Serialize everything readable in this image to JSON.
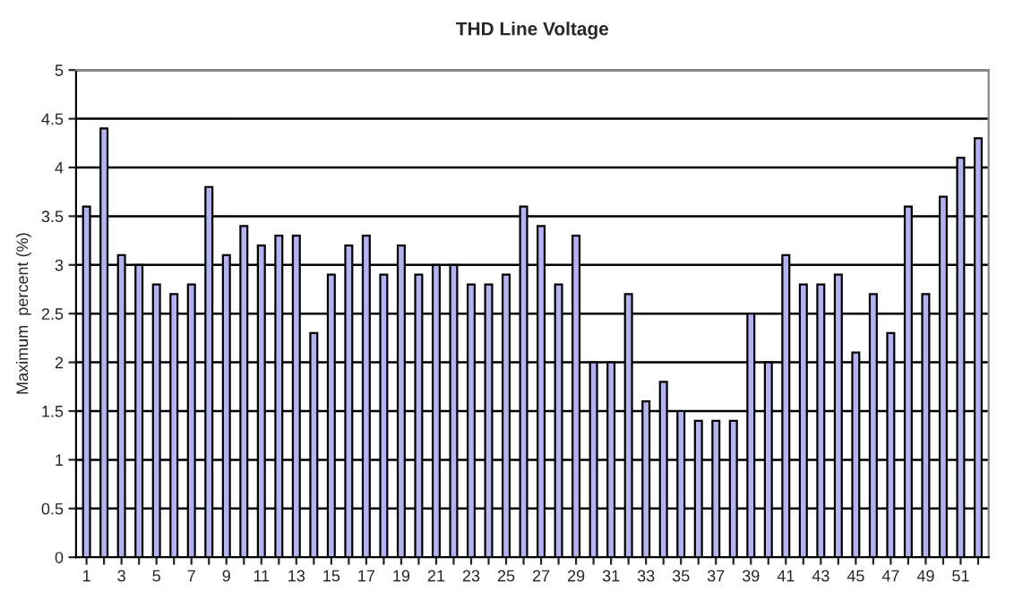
{
  "chart_data": {
    "type": "bar",
    "title": "THD Line Voltage",
    "ylabel": "Maximum  percent (%)",
    "categories": [
      "1",
      null,
      "3",
      null,
      "5",
      null,
      "7",
      null,
      "9",
      null,
      "11",
      null,
      "13",
      null,
      "15",
      null,
      "17",
      null,
      "19",
      null,
      "21",
      null,
      "23",
      null,
      "25",
      null,
      "27",
      null,
      "29",
      null,
      "31",
      null,
      "33",
      null,
      "35",
      null,
      "37",
      null,
      "39",
      null,
      "41",
      null,
      "43",
      null,
      "45",
      null,
      "47",
      null,
      "49",
      null,
      "51",
      null
    ],
    "values": [
      3.6,
      4.4,
      3.1,
      3.0,
      2.8,
      2.7,
      2.8,
      3.8,
      3.1,
      3.4,
      3.2,
      3.3,
      3.3,
      2.3,
      2.9,
      3.2,
      3.3,
      2.9,
      3.2,
      2.9,
      3.0,
      3.0,
      2.8,
      2.8,
      2.9,
      3.6,
      3.4,
      2.8,
      3.3,
      2.0,
      2.0,
      2.7,
      1.6,
      1.8,
      1.5,
      1.4,
      1.4,
      1.4,
      2.5,
      2.0,
      3.1,
      2.8,
      2.8,
      2.9,
      2.1,
      2.7,
      2.3,
      3.6,
      2.7,
      3.7,
      4.1,
      4.3
    ],
    "color": "#b3b3f2",
    "ylim": [
      0,
      5
    ],
    "yticks": [
      0,
      0.5,
      1,
      1.5,
      2,
      2.5,
      3,
      3.5,
      4,
      4.5,
      5
    ],
    "grid": "y"
  }
}
